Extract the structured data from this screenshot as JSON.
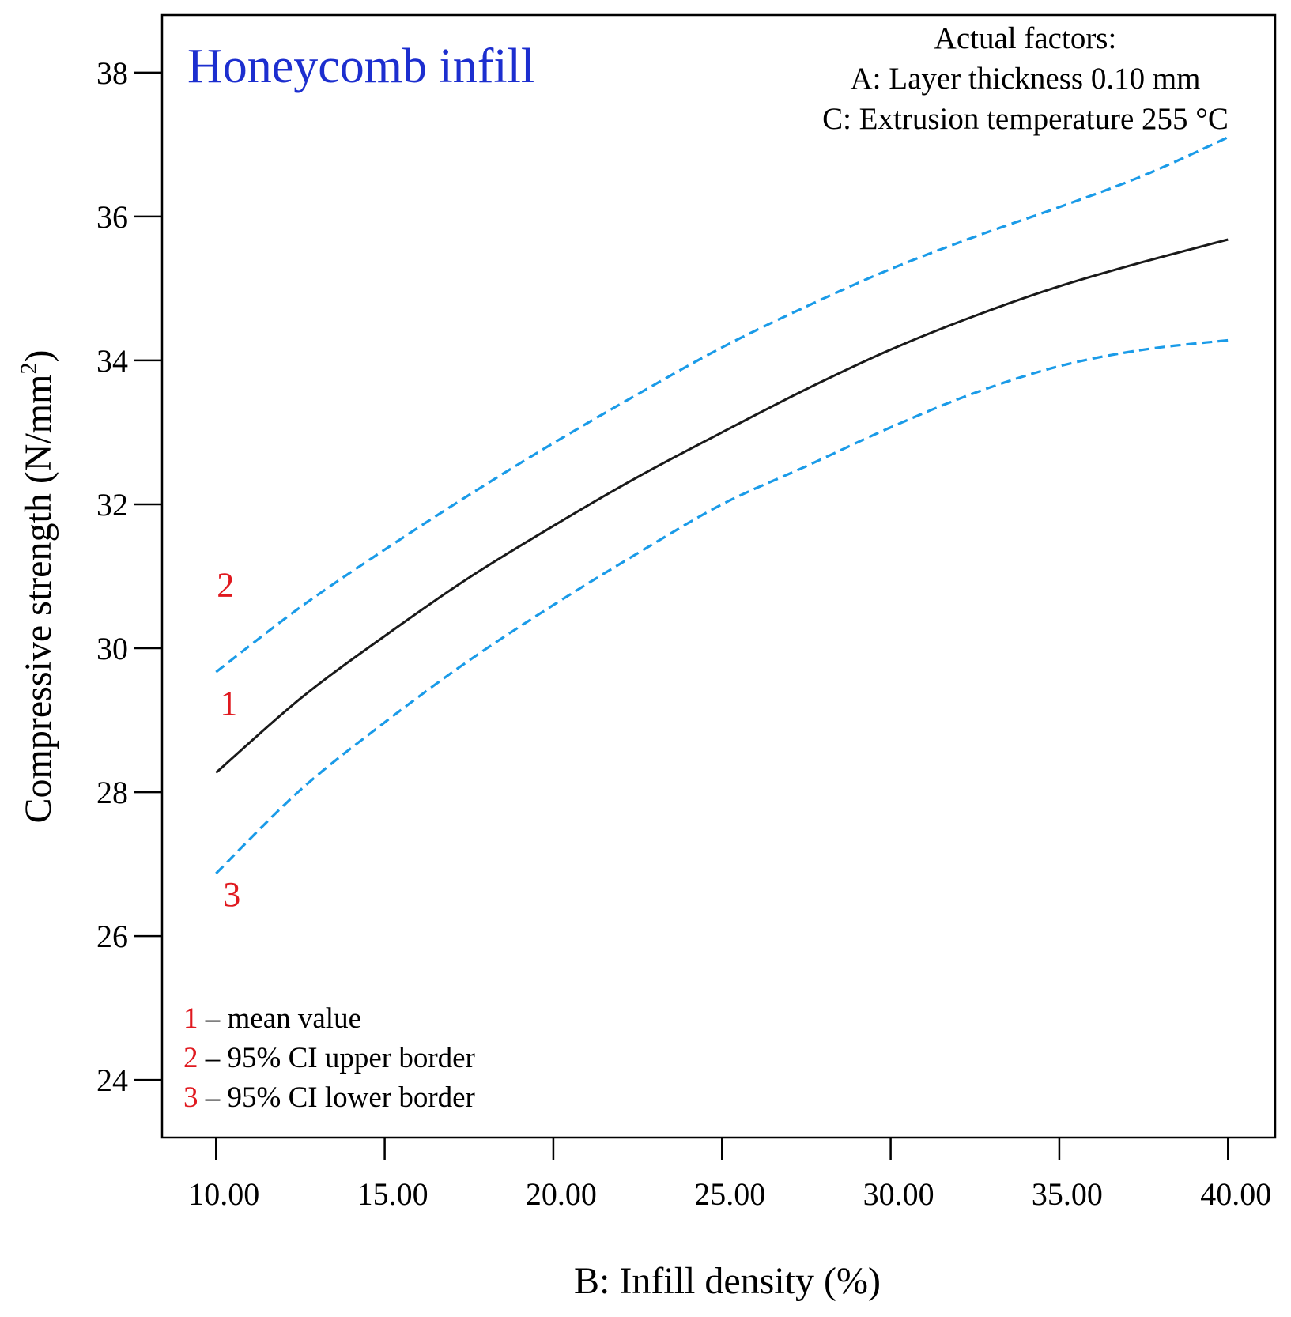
{
  "chart_data": {
    "type": "line",
    "title": "Honeycomb infill",
    "xlabel": "B: Infill density (%)",
    "ylabel": "Compressive strength (N/mm",
    "ylabel_sup": "2",
    "ylabel_close": ")",
    "xlim": [
      8.4,
      41.4
    ],
    "ylim": [
      23.2,
      38.8
    ],
    "x_ticks": [
      10,
      15,
      20,
      25,
      30,
      35,
      40
    ],
    "x_tick_labels": [
      "10.00",
      "15.00",
      "20.00",
      "25.00",
      "30.00",
      "35.00",
      "40.00"
    ],
    "y_ticks": [
      24,
      26,
      28,
      30,
      32,
      34,
      36,
      38
    ],
    "y_tick_labels": [
      "24",
      "26",
      "28",
      "30",
      "32",
      "34",
      "36",
      "38"
    ],
    "grid": false,
    "factors": {
      "heading": "Actual factors:",
      "lines": [
        "A: Layer thickness 0.10 mm",
        "C: Extrusion temperature 255 °C"
      ]
    },
    "series": [
      {
        "id": "1",
        "label": "1",
        "color": "#1a1a1a",
        "dash": false,
        "x": [
          10,
          12.5,
          15,
          17.5,
          20,
          22.5,
          25,
          27.5,
          30,
          32.5,
          35,
          37.5,
          40
        ],
        "values": [
          28.27,
          29.3,
          30.17,
          30.98,
          31.7,
          32.38,
          33.0,
          33.6,
          34.15,
          34.62,
          35.03,
          35.37,
          35.68
        ]
      },
      {
        "id": "2",
        "label": "2",
        "color": "#1a9be8",
        "dash": true,
        "x": [
          10,
          12.5,
          15,
          17.5,
          20,
          22.5,
          25,
          27.5,
          30,
          32.5,
          35,
          37.5,
          40
        ],
        "values": [
          29.67,
          30.57,
          31.37,
          32.13,
          32.85,
          33.53,
          34.18,
          34.75,
          35.27,
          35.72,
          36.13,
          36.57,
          37.1
        ]
      },
      {
        "id": "3",
        "label": "3",
        "color": "#1a9be8",
        "dash": true,
        "x": [
          10,
          12.5,
          15,
          17.5,
          20,
          22.5,
          25,
          27.5,
          30,
          32.5,
          35,
          37.5,
          40
        ],
        "values": [
          26.87,
          28.03,
          28.97,
          29.83,
          30.6,
          31.32,
          32.0,
          32.53,
          33.07,
          33.55,
          33.92,
          34.15,
          34.28
        ]
      }
    ],
    "legend": {
      "placement": "bottom-left",
      "items": [
        {
          "number": "1",
          "text": " – mean value"
        },
        {
          "number": "2",
          "text": " – 95% CI upper border"
        },
        {
          "number": "3",
          "text": " – 95% CI lower border"
        }
      ]
    }
  }
}
